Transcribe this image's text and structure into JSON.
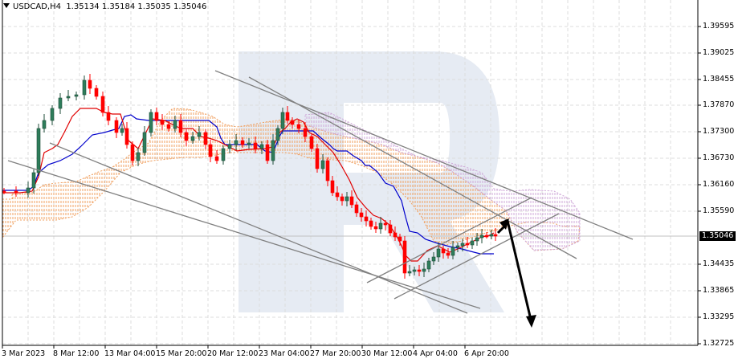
{
  "header": {
    "symbol": "USDCAD,H4",
    "open": "1.35134",
    "high": "1.35184",
    "low": "1.35035",
    "close": "1.35046"
  },
  "y_axis": {
    "labels": [
      "1.39595",
      "1.39025",
      "1.38455",
      "1.37870",
      "1.37300",
      "1.36730",
      "1.36160",
      "1.35590",
      "1.34435",
      "1.33865",
      "1.33295",
      "1.32725"
    ],
    "current_price": "1.35046"
  },
  "x_axis": {
    "labels": [
      "3 Mar 2023",
      "8 Mar 12:00",
      "13 Mar 04:00",
      "15 Mar 20:00",
      "20 Mar 12:00",
      "23 Mar 04:00",
      "27 Mar 20:00",
      "30 Mar 12:00",
      "4 Apr 04:00",
      "6 Apr 20:00"
    ]
  },
  "colors": {
    "bull": "#2e7d5b",
    "bear": "#ff0000",
    "tenkan": "#e00000",
    "kijun": "#0000cc",
    "cloud_up": "#f0a060",
    "cloud_down": "#c8a0d0",
    "trendline": "#808080",
    "arrow": "#000000",
    "grid": "#d8d8d8",
    "watermark": "#e6ebf3"
  },
  "chart_data": {
    "type": "candlestick",
    "title": "USDCAD,H4 1.35134 1.35184 1.35035 1.35046",
    "xlabel": "",
    "ylabel": "",
    "ylim": [
      1.32725,
      1.39595
    ],
    "x_tick_labels": [
      "3 Mar 2023",
      "8 Mar 12:00",
      "13 Mar 04:00",
      "15 Mar 20:00",
      "20 Mar 12:00",
      "23 Mar 04:00",
      "27 Mar 20:00",
      "30 Mar 12:00",
      "4 Apr 04:00",
      "6 Apr 20:00"
    ],
    "y_tick_labels": [
      1.39595,
      1.39025,
      1.38455,
      1.3787,
      1.373,
      1.3673,
      1.3616,
      1.3559,
      1.34435,
      1.33865,
      1.33295,
      1.32725
    ],
    "grid": true,
    "indicators": [
      "Ichimoku Tenkan-sen (red)",
      "Ichimoku Kijun-sen (blue)",
      "Ichimoku cloud (orange/purple hatched)"
    ],
    "last_close": 1.35046,
    "approx_path": [
      {
        "x": "3 Mar 2023",
        "close": 1.3605
      },
      {
        "x": "8 Mar 12:00",
        "close": 1.381
      },
      {
        "x": "13 Mar 04:00",
        "close": 1.372
      },
      {
        "x": "15 Mar 20:00",
        "close": 1.374
      },
      {
        "x": "20 Mar 12:00",
        "close": 1.371
      },
      {
        "x": "23 Mar 04:00",
        "close": 1.374
      },
      {
        "x": "27 Mar 20:00",
        "close": 1.36
      },
      {
        "x": "30 Mar 12:00",
        "close": 1.353
      },
      {
        "x": "4 Apr 04:00",
        "close": 1.343
      },
      {
        "x": "6 Apr 20:00",
        "close": 1.3505
      }
    ],
    "annotations": [
      "Descending channel trend lines",
      "Ascending channel from ~1.3420",
      "Forecast arrow up to ~1.3560 then down to ~1.3310"
    ]
  }
}
